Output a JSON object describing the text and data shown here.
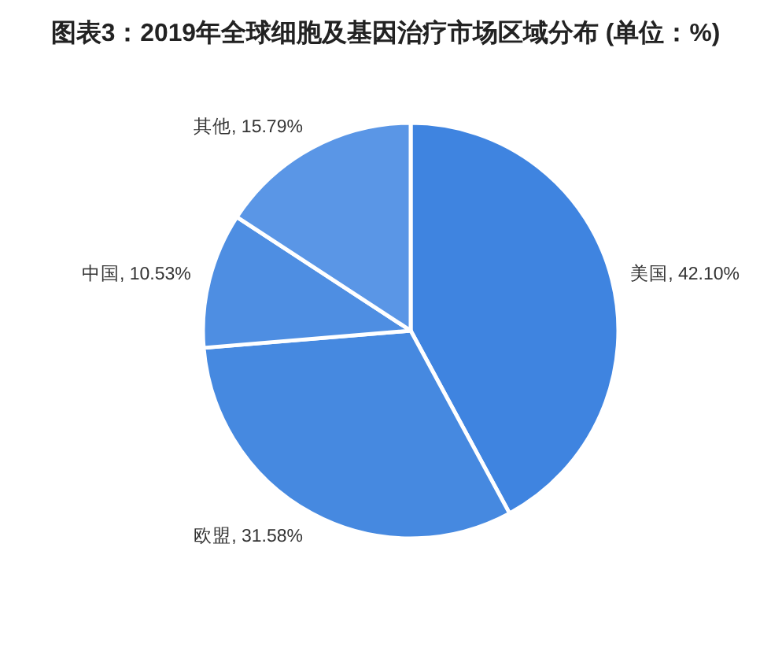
{
  "chart_data": {
    "type": "pie",
    "title": "图表3：2019年全球细胞及基因治疗市场区域分布 (单位：%)",
    "categories": [
      "美国",
      "欧盟",
      "中国",
      "其他"
    ],
    "values": [
      42.1,
      31.58,
      10.53,
      15.79
    ],
    "value_labels": [
      "42.10%",
      "31.58%",
      "10.53%",
      "15.79%"
    ],
    "colors": [
      "#3f84e0",
      "#4689e0",
      "#4e8ee2",
      "#5a96e6"
    ],
    "legend": false
  }
}
